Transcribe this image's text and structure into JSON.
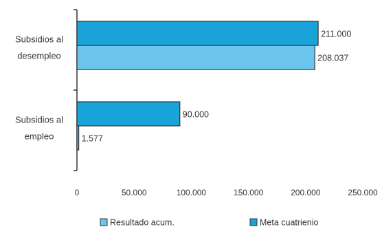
{
  "chart_data": {
    "type": "bar",
    "orientation": "horizontal",
    "categories": [
      [
        "Subsidios al",
        "desempleo"
      ],
      [
        "Subsidios al",
        "empleo"
      ]
    ],
    "series": [
      {
        "name": "Meta cuatrienio",
        "values": [
          211000,
          90000
        ],
        "labels": [
          "211.000",
          "90.000"
        ],
        "color": "#1aa3d9"
      },
      {
        "name": "Resultado acum.",
        "values": [
          208037,
          1577
        ],
        "labels": [
          "208.037",
          "1.577"
        ],
        "color": "#6cc5ec"
      }
    ],
    "xlim": [
      0,
      250000
    ],
    "xticks": [
      0,
      50000,
      100000,
      150000,
      200000,
      250000
    ],
    "xtick_labels": [
      "0",
      "50.000",
      "100.000",
      "150.000",
      "200.000",
      "250.000"
    ],
    "legend_order": [
      "Resultado acum.",
      "Meta cuatrienio"
    ],
    "legend_position": "bottom",
    "grid": false
  }
}
